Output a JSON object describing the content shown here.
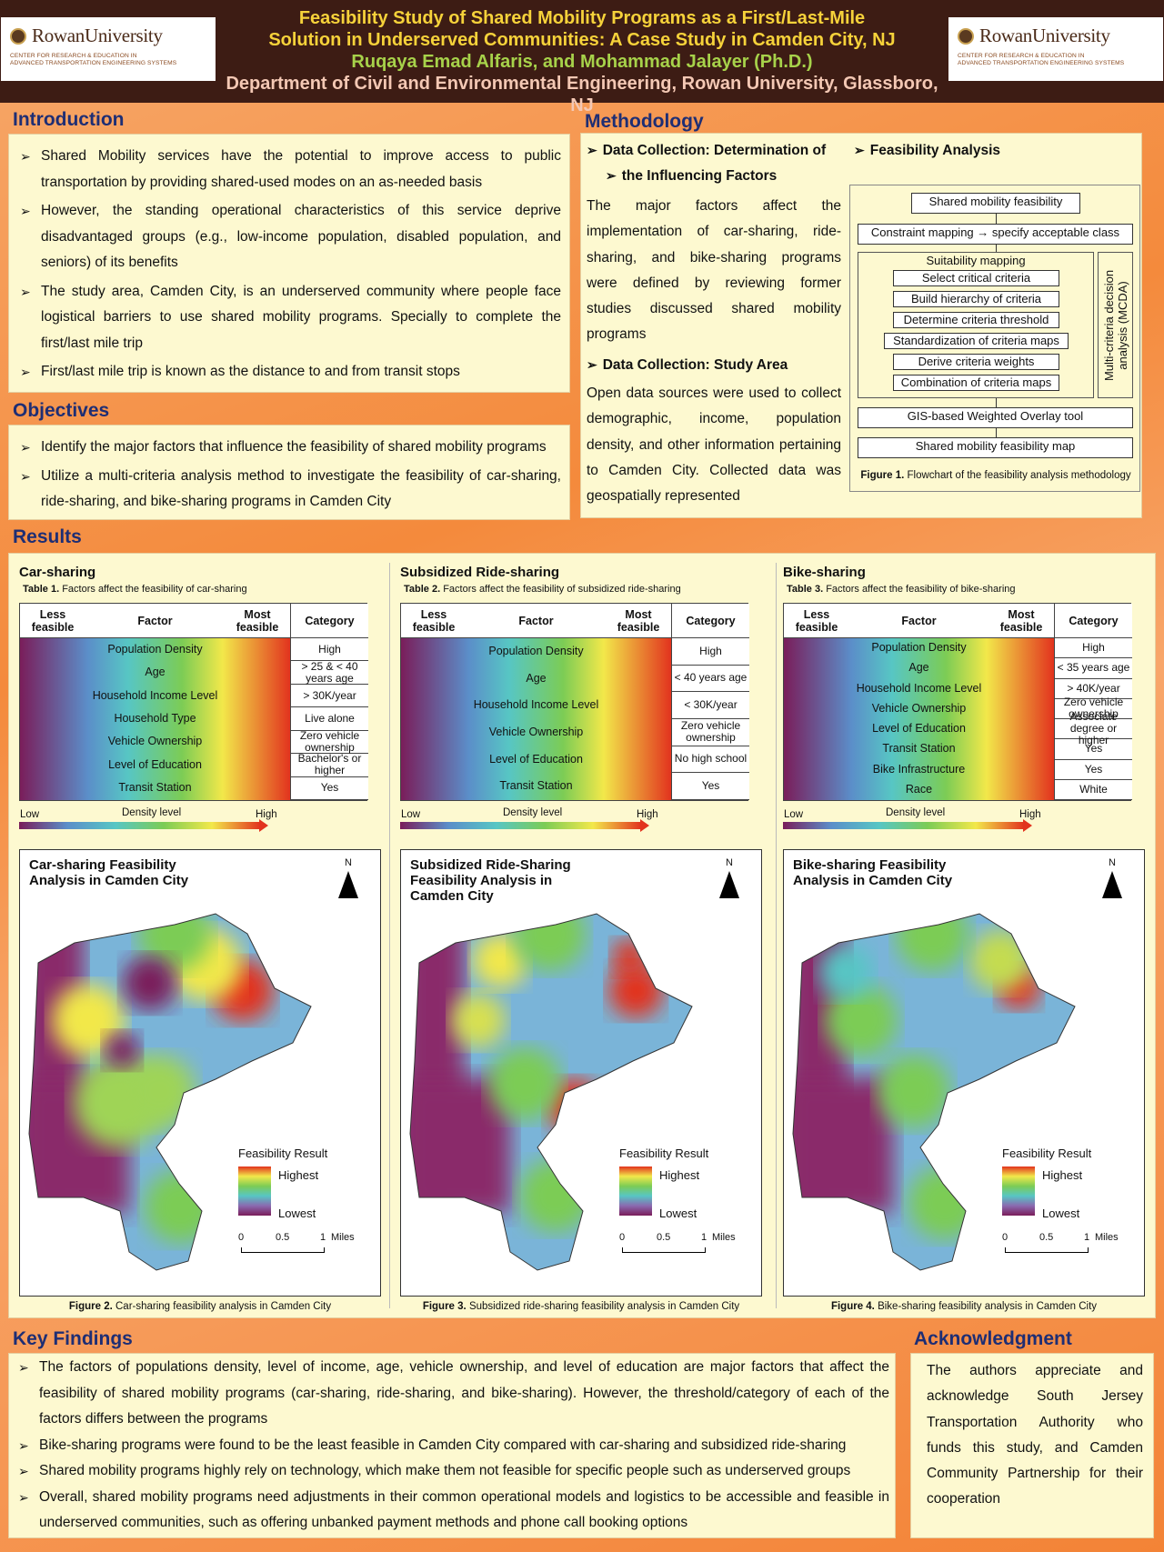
{
  "header": {
    "title_line1": "Feasibility Study of Shared Mobility Programs as a First/Last-Mile",
    "title_line2": "Solution in Underserved Communities: A Case Study in Camden City, NJ",
    "authors": "Ruqaya Emad Alfaris, and Mohammad Jalayer (Ph.D.)",
    "department": "Department of Civil and Environmental Engineering, Rowan University, Glassboro, NJ",
    "logo_name": "RowanUniversity",
    "logo_sub_1": "CENTER FOR RESEARCH & EDUCATION IN",
    "logo_sub_2": "ADVANCED TRANSPORTATION ENGINEERING SYSTEMS"
  },
  "introduction": {
    "heading": "Introduction",
    "bullets": [
      "Shared Mobility services have the potential to improve access to public transportation by providing shared-used modes on an as-needed basis",
      "However, the standing operational characteristics of this service deprive disadvantaged groups (e.g., low-income population, disabled population, and seniors) of its benefits",
      "The study area, Camden City, is an underserved community where people face logistical barriers to use shared mobility programs. Specially to complete the first/last mile trip",
      "First/last mile trip is known as the distance to and from transit stops"
    ]
  },
  "objectives": {
    "heading": "Objectives",
    "bullets": [
      "Identify the major factors that influence the feasibility of shared mobility programs",
      "Utilize a multi-criteria analysis method to investigate the feasibility of car-sharing, ride-sharing, and bike-sharing programs in Camden City"
    ]
  },
  "methodology": {
    "heading": "Methodology",
    "dc_factors_heading_1": "Data Collection: Determination of",
    "dc_factors_heading_2": "the Influencing Factors",
    "dc_factors_text": "The major factors affect the implementation of car-sharing, ride-sharing, and bike-sharing programs were defined by reviewing former studies discussed shared mobility programs",
    "dc_area_heading": "Data Collection: Study Area",
    "dc_area_text": "Open data sources were used to collect demographic, income, population density, and other information pertaining to Camden City. Collected data was geospatially represented",
    "fa_heading": "Feasibility Analysis",
    "flow": {
      "top": "Shared  mobility feasibility",
      "constraint": "Constraint mapping → specify acceptable class",
      "suitability": "Suitability mapping",
      "steps": [
        "Select critical criteria",
        "Build hierarchy of criteria",
        "Determine criteria threshold",
        "Standardization of criteria maps",
        "Derive criteria weights",
        "Combination of criteria maps"
      ],
      "mcda_1": "Multi-criteria decision",
      "mcda_2": "analysis (MCDA)",
      "gis": "GIS-based Weighted Overlay tool",
      "map": "Shared mobility feasibility map"
    },
    "fig1_label": "Figure 1.",
    "fig1_caption": "Flowchart of the feasibility analysis methodology"
  },
  "results": {
    "heading": "Results",
    "density_low": "Low",
    "density_label": "Density level",
    "density_high": "High",
    "less_feasible": "Less feasible",
    "factor": "Factor",
    "most_feasible": "Most feasible",
    "category": "Category",
    "legend_title": "Feasibility Result",
    "legend_high": "Highest",
    "legend_low": "Lowest",
    "scale_0": "0",
    "scale_05": "0.5",
    "scale_1": "1",
    "scale_unit": "Miles",
    "north": "N",
    "panels": [
      {
        "title": "Car-sharing",
        "table_label": "Table 1.",
        "table_caption": "Factors affect the feasibility of car-sharing",
        "factors": [
          "Population Density",
          "Age",
          "Household Income Level",
          "Household Type",
          "Vehicle Ownership",
          "Level of Education",
          "Transit Station"
        ],
        "categories": [
          "High",
          "> 25 & < 40 years age",
          "> 30K/year",
          "Live alone",
          "Zero vehicle ownership",
          "Bachelor's or higher",
          "Yes"
        ],
        "map_title": "Car-sharing Feasibility Analysis in Camden City",
        "fig_label": "Figure 2.",
        "fig_caption": "Car-sharing feasibility analysis in Camden City"
      },
      {
        "title": "Subsidized Ride-sharing",
        "table_label": "Table 2.",
        "table_caption": "Factors affect the feasibility of subsidized ride-sharing",
        "factors": [
          "Population Density",
          "Age",
          "Household Income Level",
          "Vehicle Ownership",
          "Level of Education",
          "Transit Station"
        ],
        "categories": [
          "High",
          "< 40 years age",
          "< 30K/year",
          "Zero vehicle ownership",
          "No high school",
          "Yes"
        ],
        "map_title": "Subsidized Ride-Sharing Feasibility Analysis in Camden City",
        "fig_label": "Figure 3.",
        "fig_caption": "Subsidized ride-sharing feasibility analysis in Camden City"
      },
      {
        "title": "Bike-sharing",
        "table_label": "Table 3.",
        "table_caption": "Factors affect the feasibility of bike-sharing",
        "factors": [
          "Population Density",
          "Age",
          "Household Income Level",
          "Vehicle Ownership",
          "Level of Education",
          "Transit Station",
          "Bike Infrastructure",
          "Race"
        ],
        "categories": [
          "High",
          "< 35 years age",
          "> 40K/year",
          "Zero vehicle ownership",
          "Associate degree or higher",
          "Yes",
          "Yes",
          "White"
        ],
        "map_title": "Bike-sharing Feasibility Analysis in Camden City",
        "fig_label": "Figure 4.",
        "fig_caption": "Bike-sharing feasibility analysis in Camden City"
      }
    ]
  },
  "key_findings": {
    "heading": "Key Findings",
    "bullets": [
      "The factors of populations density, level of income, age, vehicle ownership, and level of education are major factors that affect the feasibility of shared mobility programs (car-sharing, ride-sharing, and bike-sharing). However, the threshold/category of each of the factors differs between the programs",
      "Bike-sharing programs were found to be the least feasible in Camden City compared with car-sharing and subsidized ride-sharing",
      "Shared mobility programs highly rely on technology, which make them not feasible for specific people such as underserved groups",
      "Overall, shared mobility programs need adjustments in their common operational models and logistics to be accessible and feasible in underserved communities, such as offering unbanked payment methods and phone call booking options"
    ]
  },
  "acknowledgment": {
    "heading": "Acknowledgment",
    "text": "The authors appreciate and acknowledge South Jersey Transportation Authority who funds this study, and Camden Community Partnership for their cooperation"
  }
}
